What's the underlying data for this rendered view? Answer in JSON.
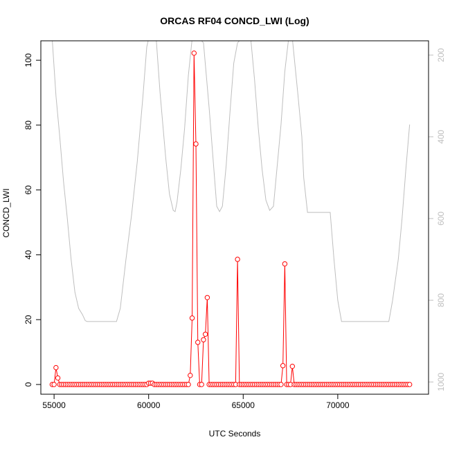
{
  "colors": {
    "background": "#ffffff",
    "axis": "#000000",
    "primary_series": "#ff0000",
    "secondary_series": "#bebebe",
    "secondary_axis": "#bebebe"
  },
  "chart_data": {
    "type": "line",
    "title": "ORCAS RF04 CONCD_LWI (Log)",
    "xlabel": "UTC Seconds",
    "ylabel": "CONCD_LWI",
    "y2label": "",
    "xlim": [
      54300,
      74800
    ],
    "ylim": [
      -3,
      106
    ],
    "y2lim": [
      1030,
      165
    ],
    "y2_reversed": true,
    "x_ticks": [
      55000,
      60000,
      65000,
      70000
    ],
    "y_ticks": [
      0,
      20,
      40,
      60,
      80,
      100
    ],
    "y2_ticks": [
      200,
      400,
      600,
      800,
      1000
    ],
    "grid": false,
    "legend": "none",
    "series": [
      {
        "axis": "left",
        "style": "line-with-circle-markers",
        "color": "#ff0000",
        "points": [
          [
            54900,
            0
          ],
          [
            55000,
            0
          ],
          [
            55100,
            5.2
          ],
          [
            55200,
            2.0
          ],
          [
            55300,
            0
          ],
          [
            55400,
            0
          ],
          [
            55500,
            0
          ],
          [
            55600,
            0
          ],
          [
            55700,
            0
          ],
          [
            55800,
            0
          ],
          [
            55900,
            0
          ],
          [
            56000,
            0
          ],
          [
            56100,
            0
          ],
          [
            56200,
            0
          ],
          [
            56300,
            0
          ],
          [
            56400,
            0
          ],
          [
            56500,
            0
          ],
          [
            56600,
            0
          ],
          [
            56700,
            0
          ],
          [
            56800,
            0
          ],
          [
            56900,
            0
          ],
          [
            57000,
            0
          ],
          [
            57100,
            0
          ],
          [
            57200,
            0
          ],
          [
            57300,
            0
          ],
          [
            57400,
            0
          ],
          [
            57500,
            0
          ],
          [
            57600,
            0
          ],
          [
            57700,
            0
          ],
          [
            57800,
            0
          ],
          [
            57900,
            0
          ],
          [
            58000,
            0
          ],
          [
            58100,
            0
          ],
          [
            58200,
            0
          ],
          [
            58300,
            0
          ],
          [
            58400,
            0
          ],
          [
            58500,
            0
          ],
          [
            58600,
            0
          ],
          [
            58700,
            0
          ],
          [
            58800,
            0
          ],
          [
            58900,
            0
          ],
          [
            59000,
            0
          ],
          [
            59100,
            0
          ],
          [
            59200,
            0
          ],
          [
            59300,
            0
          ],
          [
            59400,
            0
          ],
          [
            59500,
            0
          ],
          [
            59600,
            0
          ],
          [
            59700,
            0
          ],
          [
            59800,
            0
          ],
          [
            59900,
            0
          ],
          [
            60000,
            0.4
          ],
          [
            60100,
            0.4
          ],
          [
            60200,
            0.4
          ],
          [
            60300,
            0
          ],
          [
            60400,
            0
          ],
          [
            60500,
            0
          ],
          [
            60600,
            0
          ],
          [
            60700,
            0
          ],
          [
            60800,
            0
          ],
          [
            60900,
            0
          ],
          [
            61000,
            0
          ],
          [
            61100,
            0
          ],
          [
            61200,
            0
          ],
          [
            61300,
            0
          ],
          [
            61400,
            0
          ],
          [
            61500,
            0
          ],
          [
            61600,
            0
          ],
          [
            61700,
            0
          ],
          [
            61800,
            0
          ],
          [
            61900,
            0
          ],
          [
            62000,
            0
          ],
          [
            62100,
            0
          ],
          [
            62200,
            2.8
          ],
          [
            62300,
            20.5
          ],
          [
            62400,
            102.2
          ],
          [
            62500,
            74.2
          ],
          [
            62600,
            13.0
          ],
          [
            62700,
            0
          ],
          [
            62800,
            0
          ],
          [
            62900,
            13.8
          ],
          [
            63000,
            15.5
          ],
          [
            63100,
            26.8
          ],
          [
            63200,
            0
          ],
          [
            63300,
            0
          ],
          [
            63400,
            0
          ],
          [
            63500,
            0
          ],
          [
            63600,
            0
          ],
          [
            63700,
            0
          ],
          [
            63800,
            0
          ],
          [
            63900,
            0
          ],
          [
            64000,
            0
          ],
          [
            64100,
            0
          ],
          [
            64200,
            0
          ],
          [
            64300,
            0
          ],
          [
            64400,
            0
          ],
          [
            64500,
            0
          ],
          [
            64600,
            0
          ],
          [
            64700,
            38.6
          ],
          [
            64800,
            0
          ],
          [
            64900,
            0
          ],
          [
            65000,
            0
          ],
          [
            65100,
            0
          ],
          [
            65200,
            0
          ],
          [
            65300,
            0
          ],
          [
            65400,
            0
          ],
          [
            65500,
            0
          ],
          [
            65600,
            0
          ],
          [
            65700,
            0
          ],
          [
            65800,
            0
          ],
          [
            65900,
            0
          ],
          [
            66000,
            0
          ],
          [
            66100,
            0
          ],
          [
            66200,
            0
          ],
          [
            66300,
            0
          ],
          [
            66400,
            0
          ],
          [
            66500,
            0
          ],
          [
            66600,
            0
          ],
          [
            66700,
            0
          ],
          [
            66800,
            0
          ],
          [
            66900,
            0
          ],
          [
            67000,
            0
          ],
          [
            67100,
            5.8
          ],
          [
            67200,
            37.2
          ],
          [
            67300,
            0
          ],
          [
            67400,
            0
          ],
          [
            67500,
            0
          ],
          [
            67600,
            5.6
          ],
          [
            67700,
            0
          ],
          [
            67800,
            0
          ],
          [
            67900,
            0
          ],
          [
            68000,
            0
          ],
          [
            68100,
            0
          ],
          [
            68200,
            0
          ],
          [
            68300,
            0
          ],
          [
            68400,
            0
          ],
          [
            68500,
            0
          ],
          [
            68600,
            0
          ],
          [
            68700,
            0
          ],
          [
            68800,
            0
          ],
          [
            68900,
            0
          ],
          [
            69000,
            0
          ],
          [
            69100,
            0
          ],
          [
            69200,
            0
          ],
          [
            69300,
            0
          ],
          [
            69400,
            0
          ],
          [
            69500,
            0
          ],
          [
            69600,
            0
          ],
          [
            69700,
            0
          ],
          [
            69800,
            0
          ],
          [
            69900,
            0
          ],
          [
            70000,
            0
          ],
          [
            70100,
            0
          ],
          [
            70200,
            0
          ],
          [
            70300,
            0
          ],
          [
            70400,
            0
          ],
          [
            70500,
            0
          ],
          [
            70600,
            0
          ],
          [
            70700,
            0
          ],
          [
            70800,
            0
          ],
          [
            70900,
            0
          ],
          [
            71000,
            0
          ],
          [
            71100,
            0
          ],
          [
            71200,
            0
          ],
          [
            71300,
            0
          ],
          [
            71400,
            0
          ],
          [
            71500,
            0
          ],
          [
            71600,
            0
          ],
          [
            71700,
            0
          ],
          [
            71800,
            0
          ],
          [
            71900,
            0
          ],
          [
            72000,
            0
          ],
          [
            72100,
            0
          ],
          [
            72200,
            0
          ],
          [
            72300,
            0
          ],
          [
            72400,
            0
          ],
          [
            72500,
            0
          ],
          [
            72600,
            0
          ],
          [
            72700,
            0
          ],
          [
            72800,
            0
          ],
          [
            72900,
            0
          ],
          [
            73000,
            0
          ],
          [
            73100,
            0
          ],
          [
            73200,
            0
          ],
          [
            73300,
            0
          ],
          [
            73400,
            0
          ],
          [
            73500,
            0
          ],
          [
            73600,
            0
          ],
          [
            73700,
            0
          ],
          [
            73800,
            0
          ]
        ]
      },
      {
        "axis": "right",
        "style": "line",
        "color": "#bebebe",
        "points": [
          [
            54900,
            160
          ],
          [
            55100,
            300
          ],
          [
            55300,
            400
          ],
          [
            55500,
            510
          ],
          [
            55700,
            600
          ],
          [
            55900,
            700
          ],
          [
            56100,
            780
          ],
          [
            56300,
            820
          ],
          [
            56500,
            835
          ],
          [
            56650,
            850
          ],
          [
            56750,
            852
          ],
          [
            57500,
            852
          ],
          [
            58300,
            852
          ],
          [
            58500,
            820
          ],
          [
            58800,
            700
          ],
          [
            59100,
            590
          ],
          [
            59400,
            460
          ],
          [
            59700,
            300
          ],
          [
            59900,
            180
          ],
          [
            60000,
            160
          ],
          [
            60400,
            160
          ],
          [
            60600,
            290
          ],
          [
            60900,
            450
          ],
          [
            61100,
            540
          ],
          [
            61300,
            580
          ],
          [
            61400,
            583
          ],
          [
            61500,
            560
          ],
          [
            61700,
            480
          ],
          [
            61900,
            380
          ],
          [
            62100,
            250
          ],
          [
            62300,
            160
          ],
          [
            62500,
            160
          ],
          [
            62700,
            160
          ],
          [
            62900,
            170
          ],
          [
            63200,
            330
          ],
          [
            63400,
            450
          ],
          [
            63600,
            570
          ],
          [
            63750,
            583
          ],
          [
            63900,
            570
          ],
          [
            64100,
            470
          ],
          [
            64300,
            340
          ],
          [
            64500,
            220
          ],
          [
            64700,
            170
          ],
          [
            64900,
            160
          ],
          [
            65400,
            160
          ],
          [
            65600,
            260
          ],
          [
            65800,
            380
          ],
          [
            66000,
            480
          ],
          [
            66200,
            555
          ],
          [
            66400,
            580
          ],
          [
            66600,
            570
          ],
          [
            66800,
            470
          ],
          [
            67000,
            370
          ],
          [
            67200,
            240
          ],
          [
            67400,
            160
          ],
          [
            67600,
            160
          ],
          [
            67900,
            300
          ],
          [
            68100,
            400
          ],
          [
            68200,
            500
          ],
          [
            68400,
            585
          ],
          [
            68700,
            585
          ],
          [
            69100,
            585
          ],
          [
            69600,
            585
          ],
          [
            69800,
            700
          ],
          [
            70000,
            800
          ],
          [
            70200,
            852
          ],
          [
            70400,
            852
          ],
          [
            71000,
            852
          ],
          [
            71600,
            852
          ],
          [
            72200,
            852
          ],
          [
            72700,
            852
          ],
          [
            72900,
            800
          ],
          [
            73200,
            700
          ],
          [
            73400,
            600
          ],
          [
            73600,
            480
          ],
          [
            73800,
            370
          ]
        ]
      }
    ]
  }
}
